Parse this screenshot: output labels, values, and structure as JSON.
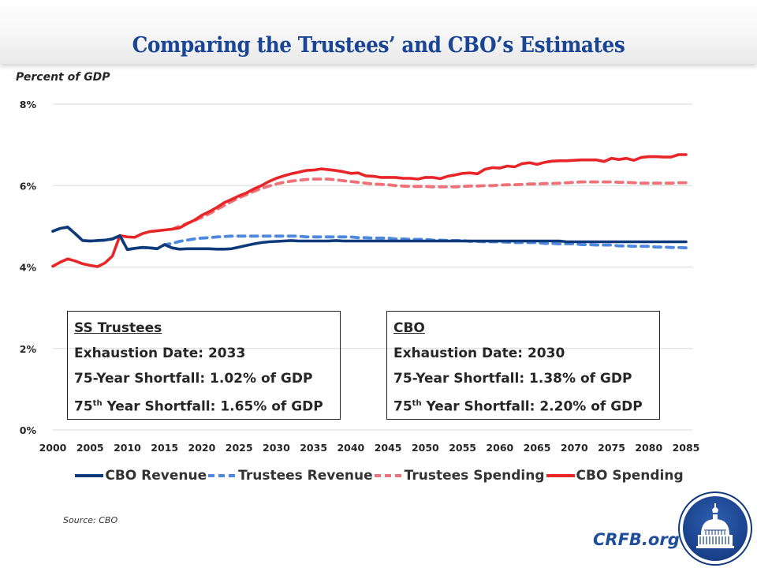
{
  "header": {
    "title": "Comparing the Trustees’ and CBO’s Estimates"
  },
  "colors": {
    "title": "#1a4594",
    "cbo_revenue": "#0f3a7a",
    "trustees_revenue": "#4e89df",
    "trustees_spending": "#ee7177",
    "cbo_spending": "#e8262a",
    "brand": "#1f4e9c"
  },
  "boxes": {
    "trustees": {
      "heading": "SS Trustees",
      "exhaustion": "Exhaustion Date: 2033",
      "shortfall_75": "75-Year Shortfall: 1.02% of GDP",
      "shortfall_75th_prefix": "75",
      "shortfall_75th_sup": "th",
      "shortfall_75th_rest": " Year Shortfall: 1.65% of GDP"
    },
    "cbo": {
      "heading": "CBO",
      "exhaustion": "Exhaustion Date: 2030",
      "shortfall_75": "75-Year Shortfall: 1.38% of GDP",
      "shortfall_75th_prefix": "75",
      "shortfall_75th_sup": "th",
      "shortfall_75th_rest": " Year Shortfall: 2.20% of GDP"
    }
  },
  "footer": {
    "source": "Source: CBO",
    "brand": "CRFB.org",
    "logo": "capitol-dome-logo"
  },
  "chart_data": {
    "type": "line",
    "title": "Comparing the Trustees’ and CBO’s Estimates",
    "xlabel": "",
    "ylabel": "Percent of GDP",
    "xlim": [
      2000,
      2085
    ],
    "ylim": [
      0,
      8
    ],
    "grid": true,
    "legend": "bottom",
    "x_ticks": [
      "2000",
      "2005",
      "2010",
      "2015",
      "2020",
      "2025",
      "2030",
      "2035",
      "2040",
      "2045",
      "2050",
      "2055",
      "2060",
      "2065",
      "2070",
      "2075",
      "2080",
      "2085"
    ],
    "y_ticks": [
      "0%",
      "2%",
      "4%",
      "6%",
      "8%"
    ],
    "y_tick_values": [
      0,
      2,
      4,
      6,
      8
    ],
    "x_start": 2000,
    "series": [
      {
        "name": "CBO Revenue",
        "style": "solid",
        "color_key": "cbo_revenue",
        "start": 2000,
        "values": [
          4.88,
          4.95,
          4.98,
          4.82,
          4.65,
          4.64,
          4.65,
          4.66,
          4.69,
          4.77,
          4.43,
          4.46,
          4.48,
          4.47,
          4.45,
          4.55,
          4.47,
          4.44,
          4.45,
          4.45,
          4.45,
          4.45,
          4.44,
          4.44,
          4.45,
          4.49,
          4.53,
          4.57,
          4.6,
          4.62,
          4.63,
          4.64,
          4.65,
          4.64,
          4.64,
          4.64,
          4.64,
          4.64,
          4.65,
          4.64,
          4.64,
          4.64,
          4.64,
          4.64,
          4.64,
          4.64,
          4.64,
          4.64,
          4.64,
          4.64,
          4.64,
          4.64,
          4.64,
          4.64,
          4.64,
          4.64,
          4.64,
          4.64,
          4.64,
          4.64,
          4.64,
          4.64,
          4.64,
          4.64,
          4.64,
          4.64,
          4.64,
          4.64,
          4.64,
          4.62,
          4.62,
          4.62,
          4.62,
          4.62,
          4.62,
          4.62,
          4.62,
          4.62,
          4.62,
          4.62,
          4.62,
          4.62,
          4.62,
          4.62,
          4.62,
          4.62
        ]
      },
      {
        "name": "Trustees Revenue",
        "style": "dashed",
        "color_key": "trustees_revenue",
        "start": 2000,
        "values": [
          4.88,
          4.95,
          4.98,
          4.82,
          4.65,
          4.64,
          4.65,
          4.66,
          4.69,
          4.77,
          4.43,
          4.46,
          4.48,
          4.47,
          4.45,
          4.55,
          4.58,
          4.63,
          4.66,
          4.69,
          4.71,
          4.72,
          4.74,
          4.75,
          4.76,
          4.76,
          4.76,
          4.76,
          4.76,
          4.76,
          4.76,
          4.76,
          4.76,
          4.76,
          4.74,
          4.74,
          4.74,
          4.74,
          4.74,
          4.74,
          4.74,
          4.72,
          4.72,
          4.71,
          4.71,
          4.71,
          4.69,
          4.69,
          4.68,
          4.68,
          4.68,
          4.66,
          4.66,
          4.65,
          4.65,
          4.65,
          4.63,
          4.63,
          4.62,
          4.62,
          4.62,
          4.61,
          4.6,
          4.6,
          4.6,
          4.6,
          4.58,
          4.58,
          4.57,
          4.57,
          4.57,
          4.55,
          4.55,
          4.54,
          4.54,
          4.54,
          4.52,
          4.52,
          4.51,
          4.51,
          4.51,
          4.49,
          4.49,
          4.48,
          4.48,
          4.47
        ]
      },
      {
        "name": "Trustees Spending",
        "style": "dashed",
        "color_key": "trustees_spending",
        "start": 2016,
        "values": [
          4.93,
          5.0,
          5.07,
          5.14,
          5.22,
          5.31,
          5.41,
          5.51,
          5.61,
          5.7,
          5.78,
          5.86,
          5.93,
          5.99,
          6.04,
          6.08,
          6.11,
          6.13,
          6.15,
          6.16,
          6.16,
          6.16,
          6.14,
          6.12,
          6.1,
          6.08,
          6.06,
          6.04,
          6.03,
          6.02,
          6.0,
          5.99,
          5.98,
          5.98,
          5.98,
          5.97,
          5.97,
          5.97,
          5.97,
          5.98,
          5.99,
          5.99,
          6.0,
          6.0,
          6.01,
          6.02,
          6.02,
          6.03,
          6.04,
          6.04,
          6.05,
          6.05,
          6.06,
          6.07,
          6.08,
          6.09,
          6.09,
          6.09,
          6.09,
          6.09,
          6.08,
          6.08,
          6.07,
          6.06,
          6.06,
          6.06,
          6.06,
          6.06,
          6.07,
          6.07
        ]
      },
      {
        "name": "CBO Spending",
        "style": "solid",
        "color_key": "cbo_spending",
        "start": 2000,
        "values": [
          4.02,
          4.12,
          4.2,
          4.15,
          4.08,
          4.04,
          4.01,
          4.1,
          4.27,
          4.77,
          4.74,
          4.73,
          4.82,
          4.87,
          4.89,
          4.91,
          4.93,
          4.96,
          5.06,
          5.15,
          5.27,
          5.36,
          5.46,
          5.58,
          5.66,
          5.75,
          5.82,
          5.92,
          6.0,
          6.1,
          6.18,
          6.24,
          6.29,
          6.33,
          6.37,
          6.38,
          6.41,
          6.39,
          6.37,
          6.34,
          6.3,
          6.31,
          6.24,
          6.23,
          6.2,
          6.2,
          6.2,
          6.18,
          6.18,
          6.16,
          6.2,
          6.2,
          6.17,
          6.23,
          6.26,
          6.3,
          6.31,
          6.29,
          6.4,
          6.44,
          6.43,
          6.48,
          6.46,
          6.54,
          6.56,
          6.52,
          6.57,
          6.6,
          6.61,
          6.61,
          6.62,
          6.63,
          6.63,
          6.63,
          6.59,
          6.67,
          6.64,
          6.67,
          6.62,
          6.69,
          6.71,
          6.71,
          6.7,
          6.7,
          6.76,
          6.76
        ]
      }
    ]
  }
}
